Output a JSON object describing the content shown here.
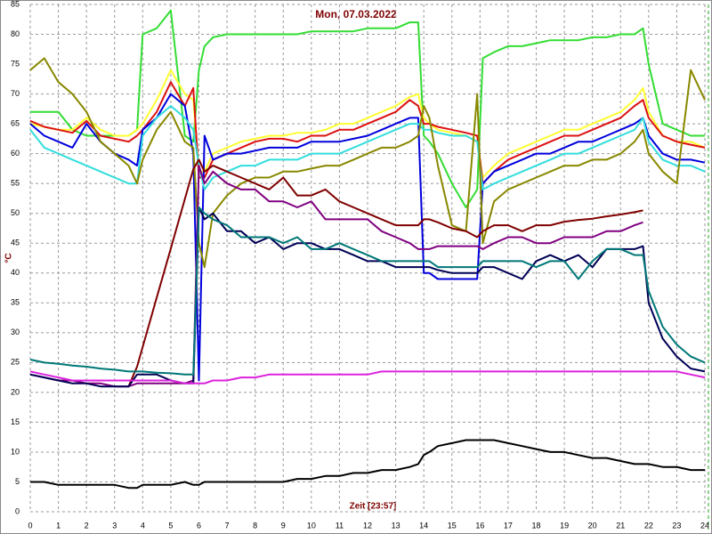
{
  "chart_data": {
    "type": "line",
    "title": "Mon, 07.03.2022",
    "x_label": "Zeit [23:57]",
    "y_label": "°C",
    "xlim": [
      0,
      24
    ],
    "xticks": [
      0,
      1,
      2,
      3,
      4,
      5,
      6,
      7,
      8,
      9,
      10,
      11,
      12,
      13,
      14,
      15,
      16,
      17,
      18,
      19,
      20,
      21,
      22,
      23,
      24
    ],
    "ylim": [
      0,
      85
    ],
    "yticks": [
      0,
      5,
      10,
      15,
      20,
      25,
      30,
      35,
      40,
      45,
      50,
      55,
      60,
      65,
      70,
      75,
      80,
      85
    ],
    "grid": true,
    "x": [
      0,
      0.5,
      1,
      1.5,
      2,
      2.5,
      3,
      3.5,
      3.8,
      4,
      4.5,
      5,
      5.5,
      5.8,
      6,
      6.2,
      6.5,
      7,
      7.5,
      8,
      8.5,
      9,
      9.5,
      10,
      10.5,
      11,
      11.5,
      12,
      12.5,
      13,
      13.5,
      13.8,
      14,
      14.2,
      14.5,
      15,
      15.5,
      15.9,
      16.1,
      16.5,
      17,
      17.5,
      18,
      18.5,
      19,
      19.5,
      20,
      20.5,
      21,
      21.5,
      21.8,
      22,
      22.5,
      23,
      23.5,
      24
    ],
    "series": [
      {
        "color": "#33dd33",
        "values": [
          67,
          67,
          67,
          64,
          63,
          63,
          63,
          63,
          64,
          80,
          81,
          84,
          63,
          62,
          74,
          78,
          79.5,
          80,
          80,
          80,
          80,
          80,
          80,
          80.5,
          80.5,
          80.5,
          80.5,
          81,
          81,
          81,
          82,
          82,
          63,
          62,
          60,
          55,
          51,
          54,
          76,
          77,
          78,
          78,
          78.5,
          79,
          79,
          79,
          79.5,
          79.5,
          80,
          80,
          81,
          75,
          65,
          64,
          63,
          63
        ]
      },
      {
        "color": "#ffff33",
        "values": [
          65,
          64.5,
          64,
          64,
          66,
          64,
          63,
          63,
          64,
          65,
          69,
          74,
          70,
          69,
          57,
          57,
          60,
          61,
          62,
          62.5,
          63,
          63,
          63.5,
          63.5,
          64,
          65,
          65,
          66,
          67,
          68,
          69.5,
          70,
          66,
          65,
          64,
          63.5,
          63,
          62,
          56,
          58,
          60,
          61,
          62,
          63,
          64,
          64,
          65,
          66,
          67,
          69,
          71,
          67,
          63,
          62,
          62,
          61
        ]
      },
      {
        "color": "#dd1111",
        "values": [
          65.5,
          64.5,
          64,
          63.5,
          65.5,
          63,
          62.5,
          62,
          63,
          64,
          67,
          72,
          68,
          71,
          56,
          56,
          59,
          60,
          61,
          62,
          62.5,
          62.5,
          62,
          63,
          63,
          64,
          64,
          65,
          66,
          67,
          69,
          68,
          65,
          65,
          64.5,
          64,
          63.5,
          63,
          55,
          57,
          59,
          60,
          61,
          62,
          63,
          63,
          64,
          65,
          66,
          68,
          69,
          66,
          63,
          62,
          61.5,
          61
        ]
      },
      {
        "color": "#0000dd",
        "values": [
          65,
          63,
          62,
          61,
          65,
          62,
          60,
          59,
          58,
          64,
          66,
          70,
          68,
          60,
          22,
          63,
          59,
          60,
          60,
          60.5,
          61,
          61,
          61,
          62,
          62,
          62,
          62.5,
          63,
          64,
          65,
          66,
          66,
          40,
          40,
          39,
          39,
          39,
          39,
          55,
          57,
          58,
          59,
          60,
          60,
          61,
          62,
          62,
          63,
          64,
          65,
          66,
          63,
          60,
          59,
          59,
          58.5
        ]
      },
      {
        "color": "#33dddd",
        "values": [
          64,
          61,
          60,
          59,
          58,
          57,
          56,
          55,
          55,
          63,
          66,
          68,
          66,
          64,
          58,
          54,
          56,
          57,
          58,
          58,
          59,
          59,
          59,
          60,
          60,
          60,
          61,
          62,
          63,
          64,
          65,
          65,
          64,
          64,
          63.5,
          63,
          63,
          62,
          54,
          55,
          56,
          57,
          58,
          59,
          60,
          60,
          61,
          62,
          63,
          64,
          66,
          62,
          59,
          58,
          58,
          57
        ]
      },
      {
        "color": "#888800",
        "values": [
          74,
          76,
          72,
          70,
          67,
          62,
          60,
          58,
          55,
          59,
          64,
          67,
          62,
          61,
          45,
          41,
          50,
          53,
          55,
          56,
          56,
          57,
          57,
          57.5,
          58,
          58,
          59,
          60,
          61,
          61,
          62,
          63,
          68,
          66,
          58,
          48,
          47,
          70,
          45,
          52,
          54,
          55,
          56,
          57,
          58,
          58,
          59,
          59,
          60,
          62,
          64,
          60,
          57,
          55,
          74,
          69
        ]
      },
      {
        "color": "#800080",
        "values": [
          23,
          22.5,
          22,
          22,
          21.5,
          21.5,
          21,
          21,
          21.5,
          21.5,
          21.5,
          21.5,
          21.5,
          22,
          58,
          55,
          57,
          55,
          54,
          54,
          52,
          52,
          51,
          52,
          49,
          49,
          49,
          49,
          47,
          46,
          45,
          44,
          44,
          44,
          44.5,
          44.5,
          44.5,
          44.5,
          44,
          45,
          46,
          46,
          45,
          45,
          46,
          46,
          46,
          47,
          47,
          48,
          48.5,
          null,
          null,
          null,
          null,
          null
        ]
      },
      {
        "color": "#800000",
        "values": [
          null,
          null,
          null,
          null,
          null,
          null,
          null,
          21,
          24.3,
          27.6,
          35.9,
          44.1,
          52.4,
          57.4,
          59,
          57,
          58,
          57,
          56,
          55,
          54,
          56,
          53,
          53,
          54,
          52,
          51,
          50,
          49,
          48,
          48,
          48,
          49,
          49,
          48.5,
          47.5,
          47,
          46,
          47,
          48,
          48,
          47,
          48,
          48,
          48.6,
          48.9,
          49.1,
          49.5,
          49.8,
          50.2,
          50.5,
          null,
          null,
          null,
          null,
          null
        ]
      },
      {
        "color": "#000055",
        "values": [
          23,
          22.5,
          22,
          21.5,
          21.5,
          21,
          21,
          21,
          23,
          23,
          23,
          22,
          21.5,
          21.5,
          51,
          49,
          50,
          47,
          47,
          45,
          46,
          44,
          45,
          45,
          44,
          44,
          43,
          42,
          42,
          41,
          41,
          41,
          41,
          41,
          40.5,
          40,
          40,
          40,
          41,
          41,
          40,
          39,
          42,
          43,
          42,
          43,
          41,
          44,
          44,
          44,
          44.5,
          35,
          29,
          26,
          24,
          23.5
        ]
      },
      {
        "color": "#007777",
        "values": [
          25.5,
          25,
          24.8,
          24.5,
          24.3,
          24,
          23.8,
          23.5,
          23.5,
          23.5,
          23.3,
          23.2,
          23,
          23,
          51,
          50,
          49,
          48,
          46,
          46,
          46,
          45,
          46,
          44,
          44,
          45,
          44,
          43,
          42,
          42,
          42,
          42,
          42,
          42,
          41,
          41,
          41,
          41,
          42,
          42,
          42,
          42,
          41,
          42,
          42,
          39,
          42,
          44,
          44,
          43,
          43,
          37,
          31,
          28,
          26,
          25
        ]
      },
      {
        "color": "#dd22dd",
        "values": [
          23.5,
          23,
          22.5,
          22,
          22,
          22,
          22,
          22,
          22,
          22,
          22,
          22,
          21.5,
          21.5,
          21.5,
          21.5,
          22,
          22,
          22.5,
          22.5,
          23,
          23,
          23,
          23,
          23,
          23,
          23,
          23,
          23.5,
          23.5,
          23.5,
          23.5,
          23.5,
          23.5,
          23.5,
          23.5,
          23.5,
          23.5,
          23.5,
          23.5,
          23.5,
          23.5,
          23.5,
          23.5,
          23.5,
          23.5,
          23.5,
          23.5,
          23.5,
          23.5,
          23.5,
          23.5,
          23.5,
          23.5,
          23,
          22.5
        ]
      },
      {
        "color": "#000000",
        "values": [
          5,
          5,
          4.5,
          4.5,
          4.5,
          4.5,
          4.5,
          4,
          4,
          4.5,
          4.5,
          4.5,
          5,
          4.5,
          4.5,
          5,
          5,
          5,
          5,
          5,
          5,
          5,
          5.5,
          5.5,
          6,
          6,
          6.5,
          6.5,
          7,
          7,
          7.5,
          8,
          9.5,
          10,
          11,
          11.5,
          12,
          12,
          12,
          12,
          11.5,
          11,
          10.5,
          10,
          10,
          9.5,
          9,
          9,
          8.5,
          8,
          8,
          8,
          7.5,
          7.5,
          7,
          7
        ]
      }
    ]
  }
}
